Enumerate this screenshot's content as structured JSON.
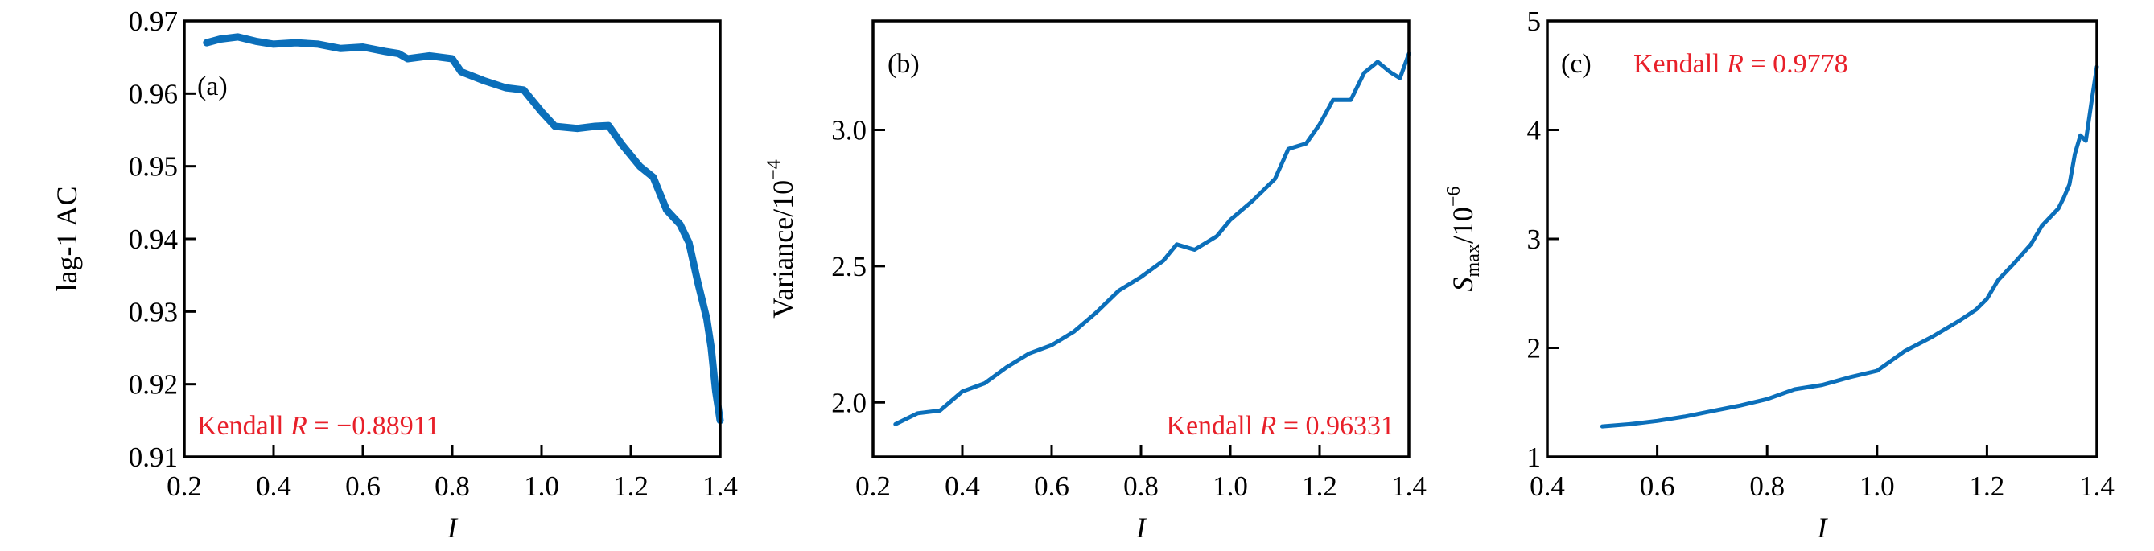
{
  "colors": {
    "line": "#0b6fba",
    "annotation": "#e8202a",
    "axes": "#000000"
  },
  "chart_data": [
    {
      "type": "line",
      "panel_label": "(a)",
      "xlabel": "I",
      "ylabel": "lag-1 AC",
      "xlim": [
        0.2,
        1.4
      ],
      "ylim": [
        0.91,
        0.97
      ],
      "xticks": [
        "0.2",
        "0.4",
        "0.6",
        "0.8",
        "1.0",
        "1.2",
        "1.4"
      ],
      "yticks": [
        "0.91",
        "0.92",
        "0.93",
        "0.94",
        "0.95",
        "0.96",
        "0.97"
      ],
      "annotation": {
        "prefix": "Kendall ",
        "var": "R",
        "value": " = −0.88911"
      },
      "x": [
        0.25,
        0.28,
        0.32,
        0.36,
        0.4,
        0.45,
        0.5,
        0.55,
        0.6,
        0.65,
        0.68,
        0.7,
        0.75,
        0.8,
        0.82,
        0.87,
        0.92,
        0.96,
        1.0,
        1.03,
        1.08,
        1.12,
        1.15,
        1.18,
        1.22,
        1.25,
        1.28,
        1.31,
        1.33,
        1.35,
        1.37,
        1.38,
        1.39,
        1.4
      ],
      "y": [
        0.967,
        0.9675,
        0.9678,
        0.9672,
        0.9668,
        0.967,
        0.9668,
        0.9662,
        0.9664,
        0.9658,
        0.9655,
        0.9648,
        0.9652,
        0.9648,
        0.963,
        0.9618,
        0.9608,
        0.9605,
        0.9575,
        0.9555,
        0.9552,
        0.9555,
        0.9556,
        0.953,
        0.95,
        0.9485,
        0.944,
        0.942,
        0.9395,
        0.934,
        0.929,
        0.925,
        0.919,
        0.915
      ]
    },
    {
      "type": "line",
      "panel_label": "(b)",
      "xlabel": "I",
      "ylabel": "Variance/10",
      "ylabel_exponent": "−4",
      "xlim": [
        0.2,
        1.4
      ],
      "ylim": [
        1.8,
        3.4
      ],
      "xticks": [
        "0.2",
        "0.4",
        "0.6",
        "0.8",
        "1.0",
        "1.2",
        "1.4"
      ],
      "yticks": [
        "2.0",
        "2.5",
        "3.0"
      ],
      "annotation": {
        "prefix": "Kendall ",
        "var": "R",
        "value": " = 0.96331"
      },
      "x": [
        0.25,
        0.3,
        0.35,
        0.4,
        0.45,
        0.5,
        0.55,
        0.6,
        0.65,
        0.7,
        0.75,
        0.8,
        0.85,
        0.88,
        0.92,
        0.97,
        1.0,
        1.05,
        1.1,
        1.13,
        1.17,
        1.2,
        1.23,
        1.27,
        1.3,
        1.33,
        1.36,
        1.38,
        1.4
      ],
      "y": [
        1.92,
        1.96,
        1.97,
        2.04,
        2.07,
        2.13,
        2.18,
        2.21,
        2.26,
        2.33,
        2.41,
        2.46,
        2.52,
        2.58,
        2.56,
        2.61,
        2.67,
        2.74,
        2.82,
        2.93,
        2.95,
        3.02,
        3.11,
        3.11,
        3.21,
        3.25,
        3.21,
        3.19,
        3.28
      ]
    },
    {
      "type": "line",
      "panel_label": "(c)",
      "xlabel": "I",
      "ylabel": "S",
      "ylabel_subscript": "max",
      "ylabel_suffix": "/10",
      "ylabel_exponent": "−6",
      "xlim": [
        0.4,
        1.4
      ],
      "ylim": [
        1,
        5
      ],
      "xticks": [
        "0.4",
        "0.6",
        "0.8",
        "1.0",
        "1.2",
        "1.4"
      ],
      "yticks": [
        "1",
        "2",
        "3",
        "4",
        "5"
      ],
      "annotation": {
        "prefix": "Kendall ",
        "var": "R",
        "value": " = 0.9778"
      },
      "x": [
        0.5,
        0.55,
        0.6,
        0.65,
        0.7,
        0.75,
        0.8,
        0.85,
        0.9,
        0.95,
        1.0,
        1.05,
        1.1,
        1.15,
        1.18,
        1.2,
        1.22,
        1.25,
        1.28,
        1.3,
        1.33,
        1.34,
        1.35,
        1.36,
        1.37,
        1.38,
        1.39,
        1.4
      ],
      "y": [
        1.28,
        1.3,
        1.33,
        1.37,
        1.42,
        1.47,
        1.53,
        1.62,
        1.66,
        1.73,
        1.79,
        1.97,
        2.1,
        2.25,
        2.35,
        2.45,
        2.62,
        2.78,
        2.95,
        3.12,
        3.28,
        3.38,
        3.5,
        3.78,
        3.95,
        3.9,
        4.25,
        4.58
      ]
    }
  ]
}
